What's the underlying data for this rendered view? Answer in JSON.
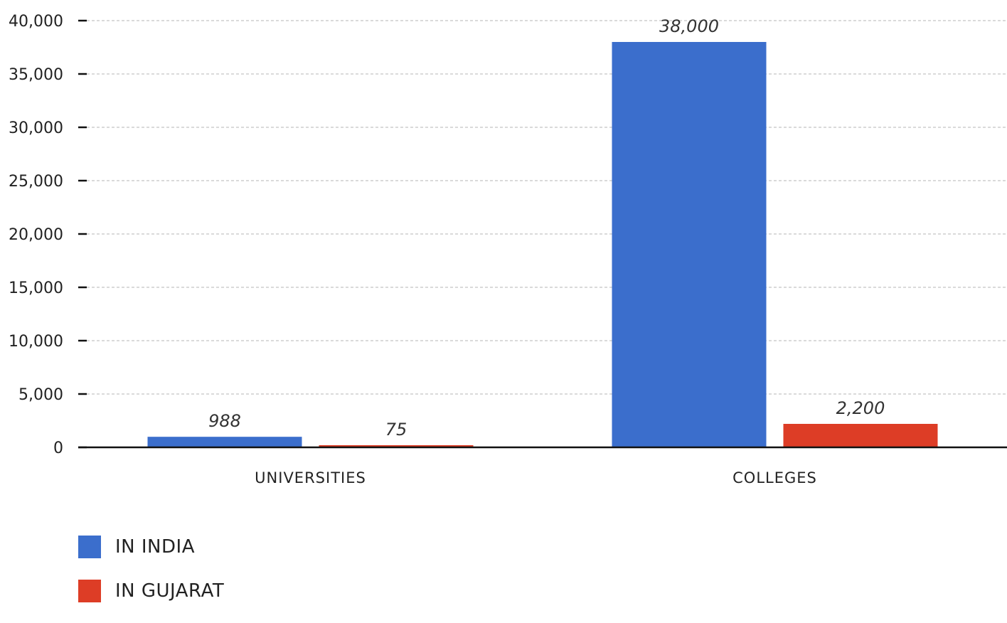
{
  "chart_data": {
    "type": "bar",
    "categories": [
      "UNIVERSITIES",
      "COLLEGES"
    ],
    "series": [
      {
        "name": "IN INDIA",
        "values": [
          988,
          38000
        ],
        "labels": [
          "988",
          "38,000"
        ],
        "color": "#3b6ecc"
      },
      {
        "name": "IN GUJARAT",
        "values": [
          75,
          2200
        ],
        "labels": [
          "75",
          "2,200"
        ],
        "color": "#dd3d26"
      }
    ],
    "yticks": [
      "0",
      "5,000",
      "10,000",
      "15,000",
      "20,000",
      "25,000",
      "30,000",
      "35,000",
      "40,000"
    ],
    "ylim": [
      0,
      40000
    ],
    "grid": true,
    "legend_position": "bottom-left"
  }
}
